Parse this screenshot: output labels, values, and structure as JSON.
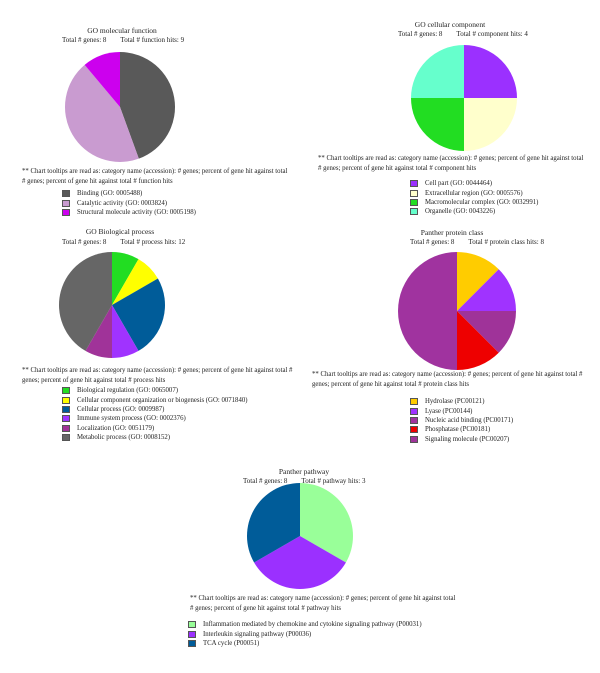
{
  "chart_data": [
    {
      "type": "pie",
      "title": "GO molecular function",
      "stats": [
        "Total # genes: 8",
        "Total # function hits: 9"
      ],
      "note": "** Chart tooltips are read as: category name (accession): # genes; percent of gene hit against total # genes; percent of gene hit against total # function hits",
      "labels": [
        "Binding (GO: 0005488)",
        "Catalytic activity (GO: 0003824)",
        "Structural molecule activity (GO: 0005198)"
      ],
      "values": [
        4,
        4,
        1
      ],
      "colors": [
        "#595959",
        "#c99bd0",
        "#cc00ee"
      ]
    },
    {
      "type": "pie",
      "title": "GO cellular component",
      "stats": [
        "Total # genes: 8",
        "Total # component hits: 4"
      ],
      "note": "** Chart tooltips are read as: category name (accession): # genes; percent of gene hit against total # genes; percent of gene hit against total # component hits",
      "labels": [
        "Cell part (GO: 0044464)",
        "Extracellular region (GO: 0005576)",
        "Macromolecular complex (GO: 0032991)",
        "Organelle (GO: 0043226)"
      ],
      "values": [
        1,
        1,
        1,
        1
      ],
      "colors": [
        "#9b30ff",
        "#ffffcc",
        "#22dd22",
        "#66ffcc"
      ]
    },
    {
      "type": "pie",
      "title": "GO Biological process",
      "stats": [
        "Total # genes: 8",
        "Total # process hits: 12"
      ],
      "note": "** Chart tooltips are read as: category name (accession): # genes; percent of gene hit against total # genes; percent of gene hit against total # process hits",
      "labels": [
        "Biological regulation (GO: 0065007)",
        "Cellular component organization or biogenesis (GO: 0071840)",
        "Cellular process (GO: 0009987)",
        "Immune system process (GO: 0002376)",
        "Localization (GO: 0051179)",
        "Metabolic process (GO: 0008152)"
      ],
      "values": [
        1,
        1,
        3,
        1,
        1,
        5
      ],
      "colors": [
        "#22dd22",
        "#ffff00",
        "#005c99",
        "#a033ff",
        "#a03399",
        "#666666"
      ]
    },
    {
      "type": "pie",
      "title": "Panther protein class",
      "stats": [
        "Total # genes: 8",
        "Total # protein class hits: 8"
      ],
      "note": "** Chart tooltips are read as: category name (accession): # genes; percent of gene hit against total # genes; percent of gene hit against total # protein class hits",
      "labels": [
        "Hydrolase (PC00121)",
        "Lyase (PC00144)",
        "Nucleic acid binding (PC00171)",
        "Phosphatase (PC00181)",
        "Signaling molecule (PC00207)"
      ],
      "values": [
        1,
        1,
        4,
        1,
        1
      ],
      "order": [
        0,
        1,
        4,
        3,
        2
      ],
      "colors": [
        "#ffcc00",
        "#a033ff",
        "#a0339f",
        "#ee0000",
        "#9f3399"
      ]
    },
    {
      "type": "pie",
      "title": "Panther pathway",
      "stats": [
        "Total # genes: 8",
        "Total # pathway hits: 3"
      ],
      "note": "** Chart tooltips are read as: category name (accession): # genes; percent of gene hit against total # genes; percent of gene hit against total # pathway hits",
      "labels": [
        "Inflammation mediated by chemokine and cytokine signaling pathway (P00031)",
        "Interleukin signaling pathway (P00036)",
        "TCA cycle (P00051)"
      ],
      "values": [
        1,
        1,
        1
      ],
      "colors": [
        "#99ff99",
        "#9b30ff",
        "#005c99"
      ]
    }
  ]
}
